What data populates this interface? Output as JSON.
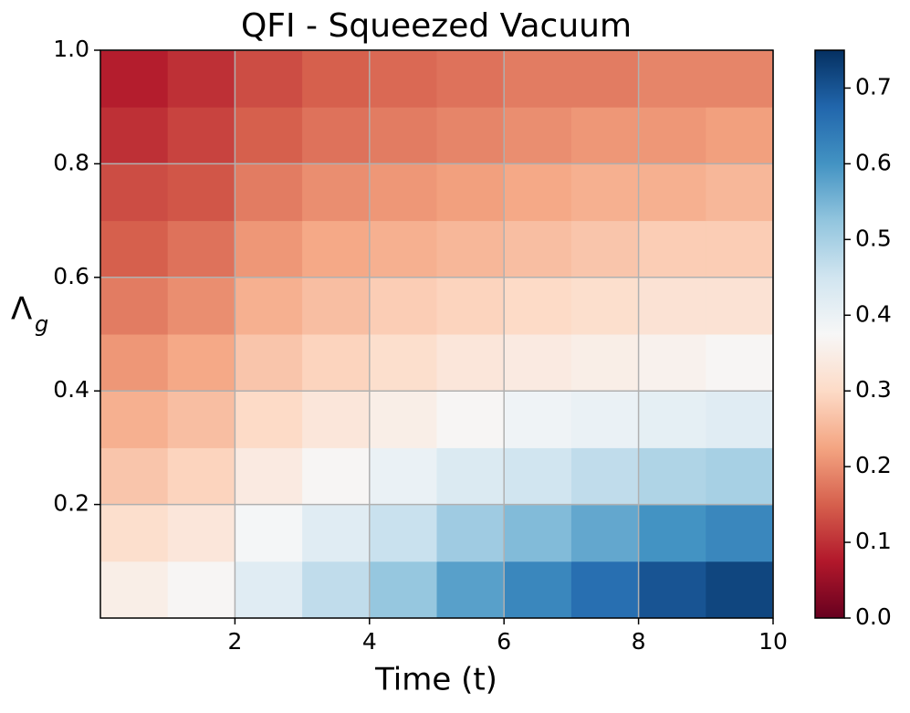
{
  "chart_data": {
    "type": "contour",
    "title": "QFI - Squeezed Vacuum",
    "xlabel": "Time (t)",
    "ylabel": {
      "symbol": "Λ",
      "subscript": "g"
    },
    "x": [
      0.5,
      1.5,
      2.5,
      3.5,
      4.5,
      5.5,
      6.5,
      7.5,
      8.5,
      9.5
    ],
    "y": [
      0.05,
      0.15,
      0.25,
      0.35,
      0.45,
      0.55,
      0.65,
      0.75,
      0.85,
      0.95
    ],
    "z": [
      [
        0.35,
        0.37,
        0.42,
        0.47,
        0.52,
        0.58,
        0.62,
        0.66,
        0.7,
        0.72
      ],
      [
        0.31,
        0.33,
        0.38,
        0.42,
        0.46,
        0.51,
        0.54,
        0.57,
        0.6,
        0.62
      ],
      [
        0.27,
        0.29,
        0.34,
        0.37,
        0.4,
        0.43,
        0.45,
        0.47,
        0.49,
        0.5
      ],
      [
        0.24,
        0.26,
        0.3,
        0.33,
        0.35,
        0.37,
        0.39,
        0.4,
        0.41,
        0.42
      ],
      [
        0.21,
        0.23,
        0.27,
        0.29,
        0.31,
        0.33,
        0.34,
        0.35,
        0.36,
        0.37
      ],
      [
        0.18,
        0.2,
        0.24,
        0.26,
        0.28,
        0.29,
        0.3,
        0.31,
        0.32,
        0.32
      ],
      [
        0.15,
        0.17,
        0.21,
        0.23,
        0.24,
        0.25,
        0.26,
        0.27,
        0.28,
        0.28
      ],
      [
        0.13,
        0.14,
        0.18,
        0.2,
        0.21,
        0.22,
        0.23,
        0.24,
        0.24,
        0.25
      ],
      [
        0.1,
        0.12,
        0.15,
        0.17,
        0.18,
        0.19,
        0.2,
        0.21,
        0.21,
        0.22
      ],
      [
        0.08,
        0.1,
        0.13,
        0.15,
        0.16,
        0.17,
        0.18,
        0.18,
        0.19,
        0.19
      ]
    ],
    "xlim": [
      0,
      10
    ],
    "ylim": [
      0,
      1
    ],
    "xticks": [
      2,
      4,
      6,
      8,
      10
    ],
    "yticks": [
      0.2,
      0.4,
      0.6,
      0.8,
      {
        "value": 1,
        "label": "1.0"
      }
    ],
    "clim": [
      0,
      0.75
    ],
    "cticks": [
      {
        "value": 0,
        "label": "0.0"
      },
      0.1,
      0.2,
      0.3,
      0.4,
      0.5,
      0.6,
      0.7
    ],
    "colorscale": [
      "#67001f",
      "#b2182b",
      "#d6604d",
      "#f4a582",
      "#fddbc7",
      "#f7f7f7",
      "#d1e5f0",
      "#92c5de",
      "#4393c3",
      "#2166ac",
      "#053061"
    ],
    "grid": true
  }
}
